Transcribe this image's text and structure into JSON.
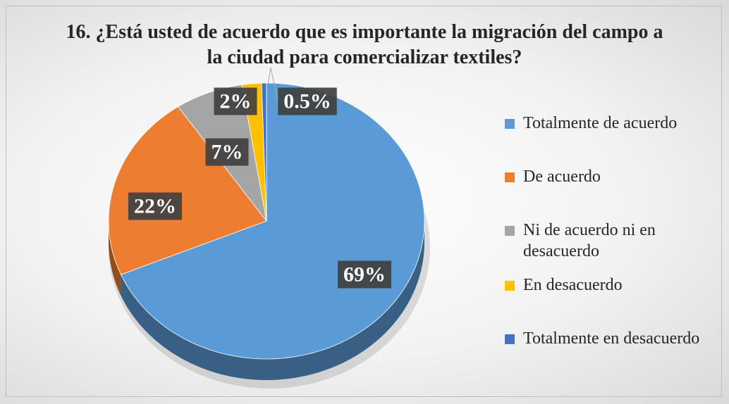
{
  "chart_data": {
    "type": "pie",
    "title": "16. ¿Está usted de acuerdo que es importante la migración del campo a la ciudad para comercializar textiles?",
    "categories": [
      "Totalmente de acuerdo",
      "De acuerdo",
      "Ni de acuerdo ni en desacuerdo",
      "En desacuerdo",
      "Totalmente en desacuerdo"
    ],
    "values": [
      69,
      22,
      7,
      2,
      0.5
    ],
    "value_labels": [
      "69%",
      "22%",
      "7%",
      "2%",
      "0.5%"
    ],
    "colors": [
      "#5b9bd5",
      "#ed7d31",
      "#a5a5a5",
      "#ffc000",
      "#4472c4"
    ],
    "legend": "right"
  }
}
